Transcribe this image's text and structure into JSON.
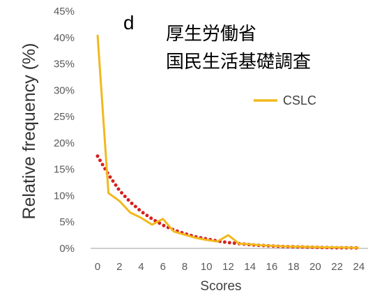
{
  "chart_data": {
    "type": "line",
    "panel_label": "d",
    "annotation": [
      "厚生労働省",
      "国民生活基礎調査"
    ],
    "xlabel": "Scores",
    "ylabel": "Relative frequency (%)",
    "xlim": [
      0,
      24
    ],
    "ylim": [
      0,
      45
    ],
    "x_ticks": [
      "0",
      "2",
      "4",
      "6",
      "8",
      "10",
      "12",
      "14",
      "16",
      "18",
      "20",
      "22",
      "24"
    ],
    "y_ticks": [
      "0%",
      "5%",
      "10%",
      "15%",
      "20%",
      "25%",
      "30%",
      "35%",
      "40%",
      "45%"
    ],
    "grid": false,
    "legend_position": "right",
    "series": [
      {
        "name": "CSLC",
        "style": "solid",
        "color": "#f2b81c",
        "x": [
          0,
          1,
          2,
          3,
          4,
          5,
          6,
          7,
          8,
          9,
          10,
          11,
          12,
          13,
          14,
          15,
          16,
          17,
          18,
          19,
          20,
          21,
          22,
          23,
          24
        ],
        "y": [
          40.5,
          10.5,
          9.0,
          6.8,
          5.8,
          4.5,
          5.6,
          3.2,
          2.6,
          2.0,
          1.6,
          1.3,
          2.5,
          0.9,
          0.8,
          0.6,
          0.5,
          0.4,
          0.35,
          0.3,
          0.25,
          0.2,
          0.2,
          0.15,
          0.1
        ]
      },
      {
        "style": "dotted",
        "color": "#d62020",
        "x": [
          0,
          1,
          2,
          3,
          4,
          5,
          6,
          7,
          8,
          9,
          10,
          11,
          12,
          13,
          14,
          15,
          16,
          17,
          18,
          19,
          20,
          21,
          22,
          23,
          24
        ],
        "y": [
          17.5,
          14.0,
          11.0,
          8.8,
          7.0,
          5.6,
          4.4,
          3.5,
          2.8,
          2.2,
          1.8,
          1.4,
          1.1,
          0.9,
          0.7,
          0.55,
          0.45,
          0.35,
          0.3,
          0.25,
          0.2,
          0.15,
          0.12,
          0.1,
          0.08
        ]
      }
    ]
  }
}
